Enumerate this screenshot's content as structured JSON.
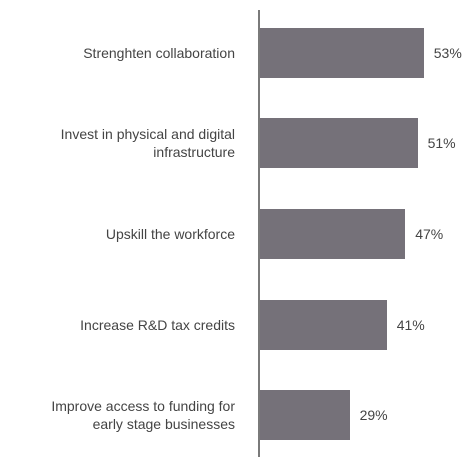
{
  "chart_data": {
    "type": "bar",
    "orientation": "horizontal",
    "categories": [
      "Strenghten collaboration",
      "Invest in physical and digital\ninfrastructure",
      "Upskill the workforce",
      "Increase R&D tax credits",
      "Improve access to funding for\nearly stage businesses"
    ],
    "values": [
      53,
      51,
      47,
      41,
      29
    ],
    "value_labels": [
      "53%",
      "51%",
      "47%",
      "41%",
      "29%"
    ],
    "color": "#757179"
  }
}
